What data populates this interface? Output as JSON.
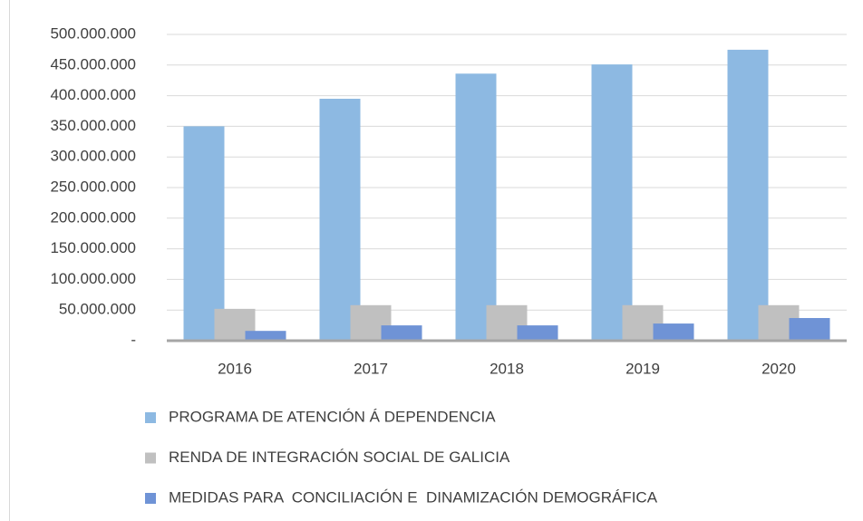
{
  "chart_data": {
    "type": "bar",
    "categories": [
      "2016",
      "2017",
      "2018",
      "2019",
      "2020"
    ],
    "series": [
      {
        "name": "PROGRAMA DE ATENCIÓN Á DEPENDENCIA",
        "color": "#8db9e2",
        "values": [
          350000000,
          395000000,
          436000000,
          451000000,
          475000000
        ]
      },
      {
        "name": "RENDA DE INTEGRACIÓN SOCIAL DE GALICIA",
        "color": "#c0c0c0",
        "values": [
          52000000,
          58000000,
          58000000,
          58000000,
          58000000
        ]
      },
      {
        "name": "MEDIDAS PARA  CONCILIACIÓN E  DINAMIZACIÓN DEMOGRÁFICA",
        "color": "#6f93d6",
        "values": [
          16000000,
          25000000,
          25000000,
          28000000,
          37000000
        ]
      }
    ],
    "ylim": [
      0,
      500000000
    ],
    "yticks": [
      {
        "value": 0,
        "label": "-"
      },
      {
        "value": 50000000,
        "label": "50.000.000"
      },
      {
        "value": 100000000,
        "label": "100.000.000"
      },
      {
        "value": 150000000,
        "label": "150.000.000"
      },
      {
        "value": 200000000,
        "label": "200.000.000"
      },
      {
        "value": 250000000,
        "label": "250.000.000"
      },
      {
        "value": 300000000,
        "label": "300.000.000"
      },
      {
        "value": 350000000,
        "label": "350.000.000"
      },
      {
        "value": 400000000,
        "label": "400.000.000"
      },
      {
        "value": 450000000,
        "label": "450.000.000"
      },
      {
        "value": 500000000,
        "label": "500.000.000"
      }
    ],
    "grid": true
  }
}
